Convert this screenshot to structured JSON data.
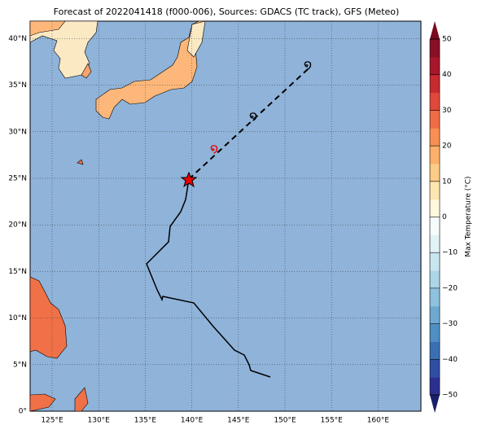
{
  "map": {
    "title": "Forecast of 2022041418 (f000-006), Sources: GDACS (TC track), GFS (Meteo)",
    "lon_labels": [
      "125°E",
      "130°E",
      "135°E",
      "140°E",
      "145°E",
      "150°E",
      "155°E",
      "160°E"
    ],
    "lat_labels": [
      "0°",
      "5°N",
      "10°N",
      "15°N",
      "20°N",
      "25°N",
      "30°N",
      "35°N",
      "40°N"
    ]
  },
  "colorbar": {
    "label": "Max Temperature (°C)",
    "ticks": [
      "−50",
      "−40",
      "−30",
      "−20",
      "−10",
      "0",
      "10",
      "20",
      "30",
      "40",
      "50"
    ]
  }
}
